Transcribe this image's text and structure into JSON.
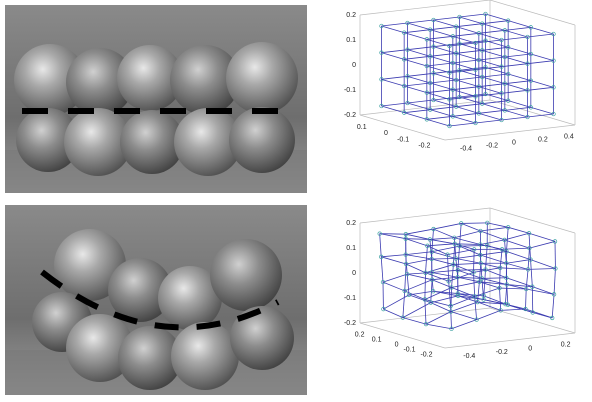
{
  "figure": {
    "panels": [
      {
        "z_ticks": [
          "0.2",
          "0.1",
          "0",
          "-0.1",
          "-0.2"
        ],
        "left_ticks": [
          "0.1",
          "0",
          "-0.1",
          "-0.2"
        ],
        "right_ticks": [
          "-0.4",
          "-0.2",
          "0",
          "0.2",
          "0.4"
        ]
      },
      {
        "z_ticks": [
          "0.2",
          "0.1",
          "0",
          "-0.1",
          "-0.2"
        ],
        "left_ticks": [
          "0.2",
          "0.1",
          "0",
          "-0.1",
          "-0.2"
        ],
        "right_ticks": [
          "-0.4",
          "-0.2",
          "0",
          "0.2"
        ]
      }
    ]
  }
}
